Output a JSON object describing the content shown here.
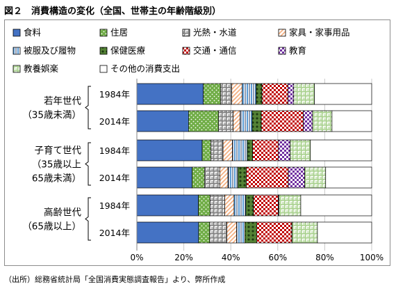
{
  "title": "図２　消費構造の変化（全国、世帯主の年齢階級別）",
  "source": "（出所）総務省統計局「全国消費実態調査報告」より、弊所作成",
  "chart_data": {
    "type": "bar",
    "orientation": "horizontal",
    "stacked": true,
    "normalized": true,
    "xlim": [
      0,
      100
    ],
    "xticks": [
      "0%",
      "20%",
      "40%",
      "60%",
      "80%",
      "100%"
    ],
    "grid": true,
    "legend_position": "top",
    "groups": [
      {
        "label_lines": [
          "若年世代",
          "（35歳未満）"
        ],
        "rows": [
          "1984年",
          "2014年"
        ]
      },
      {
        "label_lines": [
          "子育て世代",
          "（35歳以上",
          "65歳未満）"
        ],
        "rows": [
          "1984年",
          "2014年"
        ]
      },
      {
        "label_lines": [
          "高齢世代",
          "（65歳以上）"
        ],
        "rows": [
          "1984年",
          "2014年"
        ]
      }
    ],
    "categories": [
      "若年世代 1984年",
      "若年世代 2014年",
      "子育て世代 1984年",
      "子育て世代 2014年",
      "高齢世代 1984年",
      "高齢世代 2014年"
    ],
    "series": [
      {
        "name": "食料",
        "color": "#4472c4",
        "pattern": "solid",
        "values": [
          28.3,
          22.0,
          27.8,
          23.5,
          26.2,
          26.3
        ]
      },
      {
        "name": "住居",
        "color": "#70ad47",
        "pattern": "dots",
        "values": [
          7.3,
          12.8,
          3.7,
          5.3,
          5.0,
          4.7
        ]
      },
      {
        "name": "光熱・水道",
        "color": "#808080",
        "pattern": "grid",
        "values": [
          4.8,
          6.2,
          5.2,
          6.5,
          6.2,
          7.3
        ]
      },
      {
        "name": "家具・家事用品",
        "color": "#f4b183",
        "pattern": "hatch",
        "values": [
          4.4,
          3.0,
          4.0,
          3.5,
          4.0,
          4.2
        ]
      },
      {
        "name": "被服及び履物",
        "color": "#5b9bd5",
        "pattern": "vlines",
        "values": [
          6.0,
          5.1,
          6.3,
          4.2,
          5.0,
          3.5
        ]
      },
      {
        "name": "保健医療",
        "color": "#548235",
        "pattern": "diamonds",
        "values": [
          2.5,
          3.9,
          2.3,
          3.6,
          3.3,
          5.0
        ]
      },
      {
        "name": "交通・通信",
        "color": "#c00000",
        "pattern": "checker",
        "values": [
          11.1,
          17.9,
          11.0,
          17.9,
          10.5,
          15.0
        ]
      },
      {
        "name": "教育",
        "color": "#7030a0",
        "pattern": "checker",
        "values": [
          2.4,
          3.9,
          5.0,
          7.0,
          0.3,
          0.1
        ]
      },
      {
        "name": "教養娯楽",
        "color": "#a9d18e",
        "pattern": "grid",
        "values": [
          8.8,
          8.3,
          8.6,
          8.9,
          9.3,
          10.8
        ]
      },
      {
        "name": "その他の消費支出",
        "color": "#ffffff",
        "pattern": "none",
        "values": [
          24.4,
          16.9,
          26.1,
          19.6,
          30.2,
          23.1
        ]
      }
    ]
  }
}
